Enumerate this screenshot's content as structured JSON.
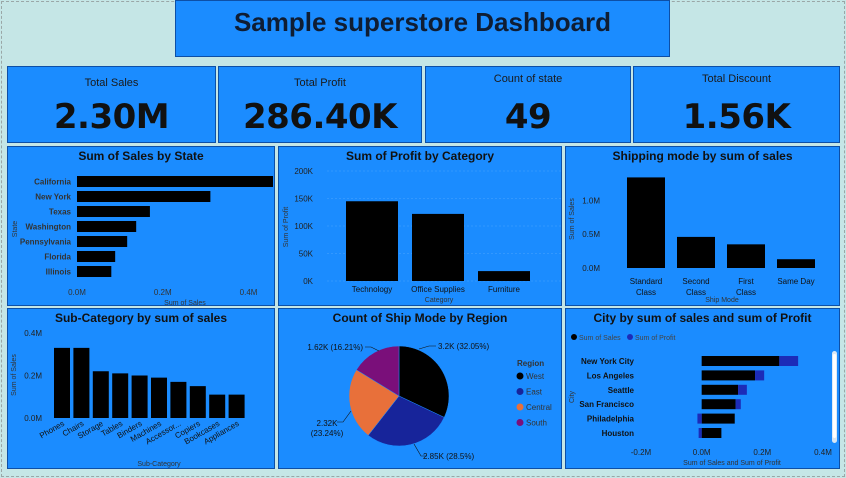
{
  "header": {
    "title": "Sample superstore Dashboard"
  },
  "kpis": [
    {
      "label": "Total Sales",
      "value": "2.30M"
    },
    {
      "label": "Total Profit",
      "value": "286.40K"
    },
    {
      "label": "Count of state",
      "value": "49"
    },
    {
      "label": "Total Discount",
      "value": "1.56K"
    }
  ],
  "colors": {
    "panel": "#1b8cff",
    "bar": "#000000",
    "west": "#000000",
    "east": "#17249a",
    "central": "#e8703a",
    "south": "#7a0f7a",
    "profit": "#1c2bb8"
  },
  "chart_data": [
    {
      "id": "sales_by_state",
      "type": "bar",
      "orientation": "horizontal",
      "title": "Sum of Sales by State",
      "categories": [
        "California",
        "New York",
        "Texas",
        "Washington",
        "Pennsylvania",
        "Florida",
        "Illinois"
      ],
      "values": [
        0.457,
        0.311,
        0.17,
        0.138,
        0.117,
        0.089,
        0.08
      ],
      "xlabel": "Sum of Sales",
      "ylabel": "State",
      "xticks": [
        0,
        0.2,
        0.4
      ],
      "xtick_labels": [
        "0.0M",
        "0.2M",
        "0.4M"
      ],
      "xlim": [
        0,
        0.457
      ]
    },
    {
      "id": "profit_by_category",
      "type": "bar",
      "title": "Sum of Profit by Category",
      "categories": [
        "Technology",
        "Office Supplies",
        "Furniture"
      ],
      "values": [
        145000,
        122000,
        18000
      ],
      "xlabel": "Category",
      "ylabel": "Sum of Profit",
      "yticks": [
        0,
        50000,
        100000,
        150000,
        200000
      ],
      "ytick_labels": [
        "0K",
        "50K",
        "100K",
        "150K",
        "200K"
      ],
      "ylim": [
        0,
        200000
      ]
    },
    {
      "id": "ship_mode_sales",
      "type": "bar",
      "title": "Shipping mode by sum of sales",
      "categories": [
        "Standard Class",
        "Second Class",
        "First Class",
        "Same Day"
      ],
      "values": [
        1.34,
        0.46,
        0.35,
        0.13
      ],
      "xlabel": "Ship Mode",
      "ylabel": "Sum of Sales",
      "yticks": [
        0,
        0.5,
        1.0
      ],
      "ytick_labels": [
        "0.0M",
        "0.5M",
        "1.0M"
      ],
      "ylim": [
        0,
        1.42
      ]
    },
    {
      "id": "subcategory_sales",
      "type": "bar",
      "title": "Sub-Category by sum of sales",
      "categories": [
        "Phones",
        "Chairs",
        "Storage",
        "Tables",
        "Binders",
        "Machines",
        "Accessor...",
        "Copiers",
        "Bookcases",
        "Appliances"
      ],
      "values": [
        0.33,
        0.33,
        0.22,
        0.21,
        0.2,
        0.19,
        0.17,
        0.15,
        0.11,
        0.11
      ],
      "xlabel": "Sub-Category",
      "ylabel": "Sum of Sales",
      "yticks": [
        0,
        0.2,
        0.4
      ],
      "ytick_labels": [
        "0.0M",
        "0.2M",
        "0.4M"
      ],
      "ylim": [
        0,
        0.4
      ]
    },
    {
      "id": "ship_mode_region",
      "type": "pie",
      "title": "Count of Ship Mode by Region",
      "legend_title": "Region",
      "slices": [
        {
          "name": "West",
          "value": 3200,
          "label": "3.2K (32.05%)"
        },
        {
          "name": "East",
          "value": 2850,
          "label": "2.85K (28.5%)"
        },
        {
          "name": "Central",
          "value": 2320,
          "label_lines": [
            "2.32K",
            "(23.24%)"
          ]
        },
        {
          "name": "South",
          "value": 1620,
          "label": "1.62K (16.21%)"
        }
      ]
    },
    {
      "id": "city_sales_profit",
      "type": "bar",
      "orientation": "horizontal",
      "title": "City by sum of sales and sum of Profit",
      "legend": [
        "Sum of Sales",
        "Sum of Profit"
      ],
      "categories": [
        "New York City",
        "Los Angeles",
        "Seattle",
        "San Francisco",
        "Philadelphia",
        "Houston"
      ],
      "series": [
        {
          "name": "Sum of Sales",
          "values": [
            0.256,
            0.176,
            0.12,
            0.112,
            0.109,
            0.065
          ]
        },
        {
          "name": "Sum of Profit",
          "values": [
            0.062,
            0.03,
            0.029,
            0.017,
            -0.014,
            -0.01
          ]
        }
      ],
      "xlabel": "Sum of Sales and Sum of Profit",
      "ylabel": "City",
      "xticks": [
        -0.2,
        0.0,
        0.2,
        0.4
      ],
      "xtick_labels": [
        "-0.2M",
        "0.0M",
        "0.2M",
        "0.4M"
      ],
      "xlim": [
        -0.2,
        0.4
      ]
    }
  ]
}
